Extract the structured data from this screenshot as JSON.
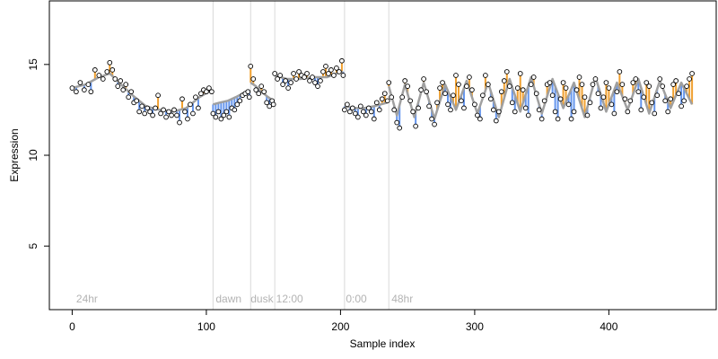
{
  "chart_data": {
    "type": "scatter",
    "title": "",
    "xlabel": "Sample index",
    "ylabel": "Expression",
    "xlim": [
      -17,
      480
    ],
    "ylim": [
      1.5,
      18.5
    ],
    "x_ticks": [
      0,
      100,
      200,
      300,
      400
    ],
    "y_ticks": [
      5,
      10,
      15
    ],
    "grid": false,
    "colors": {
      "points_fill": "#ffffff",
      "points_stroke": "#000000",
      "fit_line": "#a0a0a0",
      "residual_positive": "#f0a030",
      "residual_negative": "#6495ed",
      "divider": "#d9d9d9",
      "annotation_text": "#b3b3b3"
    },
    "annotations": [
      {
        "x": 3,
        "label": "24hr"
      },
      {
        "x": 107,
        "label": "dawn"
      },
      {
        "x": 133,
        "label": "dusk"
      },
      {
        "x": 152,
        "label": "12:00"
      },
      {
        "x": 204,
        "label": "0:00"
      },
      {
        "x": 238,
        "label": "48hr"
      }
    ],
    "dividers": [
      105,
      133,
      151,
      203,
      236
    ],
    "segments": [
      {
        "x_start": 0,
        "x_end": 104,
        "fit": [
          [
            0,
            13.7
          ],
          [
            10,
            13.9
          ],
          [
            20,
            14.3
          ],
          [
            28,
            14.5
          ],
          [
            35,
            14.0
          ],
          [
            45,
            13.3
          ],
          [
            55,
            12.7
          ],
          [
            65,
            12.5
          ],
          [
            75,
            12.4
          ],
          [
            85,
            12.6
          ],
          [
            95,
            13.2
          ],
          [
            104,
            13.6
          ]
        ],
        "points": [
          [
            0,
            13.7
          ],
          [
            3,
            13.5
          ],
          [
            6,
            14.0
          ],
          [
            9,
            13.6
          ],
          [
            12,
            13.9
          ],
          [
            14,
            13.5
          ],
          [
            17,
            14.7
          ],
          [
            20,
            14.4
          ],
          [
            23,
            14.2
          ],
          [
            26,
            14.6
          ],
          [
            28,
            15.1
          ],
          [
            30,
            14.7
          ],
          [
            32,
            14.2
          ],
          [
            34,
            13.8
          ],
          [
            36,
            14.1
          ],
          [
            38,
            13.6
          ],
          [
            40,
            13.9
          ],
          [
            42,
            13.2
          ],
          [
            44,
            13.5
          ],
          [
            46,
            12.9
          ],
          [
            48,
            13.0
          ],
          [
            50,
            12.4
          ],
          [
            52,
            12.7
          ],
          [
            54,
            12.3
          ],
          [
            56,
            12.6
          ],
          [
            58,
            12.4
          ],
          [
            60,
            12.2
          ],
          [
            62,
            12.6
          ],
          [
            64,
            13.3
          ],
          [
            66,
            12.3
          ],
          [
            68,
            12.5
          ],
          [
            70,
            12.1
          ],
          [
            72,
            12.4
          ],
          [
            74,
            12.2
          ],
          [
            76,
            12.5
          ],
          [
            78,
            12.2
          ],
          [
            80,
            11.8
          ],
          [
            82,
            13.1
          ],
          [
            84,
            12.4
          ],
          [
            86,
            12.0
          ],
          [
            88,
            12.8
          ],
          [
            90,
            12.3
          ],
          [
            92,
            13.2
          ],
          [
            94,
            12.6
          ],
          [
            96,
            13.4
          ],
          [
            98,
            13.6
          ],
          [
            100,
            13.5
          ],
          [
            102,
            13.7
          ],
          [
            104,
            13.5
          ]
        ]
      },
      {
        "x_start": 105,
        "x_end": 132,
        "fit": [
          [
            105,
            12.8
          ],
          [
            110,
            12.9
          ],
          [
            116,
            13.0
          ],
          [
            122,
            13.2
          ],
          [
            127,
            13.4
          ],
          [
            132,
            13.6
          ]
        ],
        "points": [
          [
            105,
            12.3
          ],
          [
            107,
            12.1
          ],
          [
            109,
            12.4
          ],
          [
            111,
            12.0
          ],
          [
            113,
            12.2
          ],
          [
            115,
            12.4
          ],
          [
            117,
            12.1
          ],
          [
            119,
            12.6
          ],
          [
            121,
            12.5
          ],
          [
            123,
            12.8
          ],
          [
            125,
            13.0
          ],
          [
            127,
            13.3
          ],
          [
            129,
            13.4
          ],
          [
            131,
            13.5
          ],
          [
            132,
            13.2
          ]
        ]
      },
      {
        "x_start": 133,
        "x_end": 150,
        "fit": [
          [
            133,
            14.0
          ],
          [
            137,
            13.8
          ],
          [
            141,
            13.5
          ],
          [
            146,
            13.2
          ],
          [
            150,
            13.0
          ]
        ],
        "points": [
          [
            133,
            14.9
          ],
          [
            135,
            14.2
          ],
          [
            137,
            13.6
          ],
          [
            139,
            13.4
          ],
          [
            141,
            13.8
          ],
          [
            143,
            13.5
          ],
          [
            145,
            12.9
          ],
          [
            147,
            12.7
          ],
          [
            149,
            13.0
          ],
          [
            150,
            12.8
          ]
        ]
      },
      {
        "x_start": 151,
        "x_end": 202,
        "fit": [
          [
            151,
            14.4
          ],
          [
            160,
            14.2
          ],
          [
            170,
            14.2
          ],
          [
            180,
            14.3
          ],
          [
            190,
            14.3
          ],
          [
            197,
            14.5
          ],
          [
            202,
            14.6
          ]
        ],
        "points": [
          [
            151,
            14.5
          ],
          [
            153,
            14.2
          ],
          [
            155,
            14.4
          ],
          [
            157,
            13.9
          ],
          [
            159,
            14.1
          ],
          [
            161,
            13.7
          ],
          [
            163,
            14.0
          ],
          [
            165,
            14.5
          ],
          [
            167,
            14.2
          ],
          [
            169,
            14.6
          ],
          [
            171,
            14.4
          ],
          [
            173,
            14.3
          ],
          [
            175,
            14.5
          ],
          [
            177,
            14.1
          ],
          [
            179,
            14.3
          ],
          [
            181,
            14.0
          ],
          [
            183,
            13.8
          ],
          [
            185,
            14.1
          ],
          [
            187,
            14.6
          ],
          [
            189,
            14.9
          ],
          [
            191,
            14.5
          ],
          [
            193,
            14.7
          ],
          [
            195,
            14.4
          ],
          [
            197,
            14.8
          ],
          [
            199,
            14.6
          ],
          [
            201,
            15.2
          ],
          [
            202,
            14.4
          ]
        ]
      },
      {
        "x_start": 203,
        "x_end": 235,
        "fit": [
          [
            203,
            12.7
          ],
          [
            210,
            12.6
          ],
          [
            218,
            12.6
          ],
          [
            225,
            12.7
          ],
          [
            230,
            12.8
          ],
          [
            235,
            12.9
          ]
        ],
        "points": [
          [
            203,
            12.5
          ],
          [
            205,
            12.8
          ],
          [
            207,
            12.4
          ],
          [
            209,
            12.6
          ],
          [
            211,
            12.3
          ],
          [
            213,
            12.1
          ],
          [
            215,
            12.7
          ],
          [
            217,
            12.4
          ],
          [
            219,
            12.2
          ],
          [
            221,
            12.6
          ],
          [
            223,
            12.4
          ],
          [
            225,
            12.0
          ],
          [
            227,
            12.9
          ],
          [
            229,
            12.5
          ],
          [
            231,
            13.1
          ],
          [
            233,
            13.4
          ],
          [
            235,
            13.0
          ]
        ]
      },
      {
        "x_start": 236,
        "x_end": 462,
        "fit": [
          [
            236,
            13.8
          ],
          [
            242,
            12.2
          ],
          [
            248,
            13.9
          ],
          [
            255,
            12.1
          ],
          [
            262,
            14.0
          ],
          [
            270,
            12.0
          ],
          [
            278,
            13.9
          ],
          [
            286,
            12.5
          ],
          [
            294,
            14.1
          ],
          [
            302,
            12.3
          ],
          [
            310,
            14.0
          ],
          [
            318,
            12.1
          ],
          [
            326,
            14.2
          ],
          [
            334,
            12.4
          ],
          [
            342,
            14.3
          ],
          [
            350,
            12.3
          ],
          [
            358,
            14.2
          ],
          [
            366,
            12.6
          ],
          [
            374,
            14.0
          ],
          [
            382,
            12.1
          ],
          [
            390,
            14.3
          ],
          [
            398,
            12.4
          ],
          [
            406,
            14.0
          ],
          [
            414,
            12.5
          ],
          [
            422,
            14.2
          ],
          [
            430,
            12.3
          ],
          [
            438,
            14.1
          ],
          [
            446,
            12.6
          ],
          [
            454,
            14.0
          ],
          [
            462,
            12.8
          ]
        ],
        "points": [
          [
            236,
            14.0
          ],
          [
            238,
            13.2
          ],
          [
            240,
            12.5
          ],
          [
            242,
            11.8
          ],
          [
            244,
            11.5
          ],
          [
            246,
            13.2
          ],
          [
            248,
            14.1
          ],
          [
            250,
            13.8
          ],
          [
            252,
            13.0
          ],
          [
            254,
            12.4
          ],
          [
            256,
            11.6
          ],
          [
            258,
            12.6
          ],
          [
            260,
            13.6
          ],
          [
            262,
            14.2
          ],
          [
            264,
            13.5
          ],
          [
            266,
            12.7
          ],
          [
            268,
            12.0
          ],
          [
            270,
            11.7
          ],
          [
            272,
            12.9
          ],
          [
            274,
            13.7
          ],
          [
            276,
            14.0
          ],
          [
            278,
            13.4
          ],
          [
            280,
            12.8
          ],
          [
            282,
            12.5
          ],
          [
            284,
            13.3
          ],
          [
            286,
            14.4
          ],
          [
            288,
            13.9
          ],
          [
            290,
            13.0
          ],
          [
            292,
            12.6
          ],
          [
            294,
            13.8
          ],
          [
            296,
            14.3
          ],
          [
            298,
            13.6
          ],
          [
            300,
            12.8
          ],
          [
            302,
            12.2
          ],
          [
            304,
            12.0
          ],
          [
            306,
            13.3
          ],
          [
            308,
            14.4
          ],
          [
            310,
            13.9
          ],
          [
            312,
            13.1
          ],
          [
            314,
            12.5
          ],
          [
            316,
            11.9
          ],
          [
            318,
            12.4
          ],
          [
            320,
            13.5
          ],
          [
            322,
            14.1
          ],
          [
            324,
            14.6
          ],
          [
            326,
            13.8
          ],
          [
            328,
            12.9
          ],
          [
            330,
            12.4
          ],
          [
            332,
            13.7
          ],
          [
            334,
            14.5
          ],
          [
            336,
            13.6
          ],
          [
            338,
            12.6
          ],
          [
            340,
            12.2
          ],
          [
            342,
            13.9
          ],
          [
            344,
            14.3
          ],
          [
            346,
            13.4
          ],
          [
            348,
            12.5
          ],
          [
            350,
            12.0
          ],
          [
            352,
            13.0
          ],
          [
            354,
            13.9
          ],
          [
            356,
            14.0
          ],
          [
            358,
            13.3
          ],
          [
            360,
            12.4
          ],
          [
            362,
            12.0
          ],
          [
            364,
            13.1
          ],
          [
            366,
            14.0
          ],
          [
            368,
            13.7
          ],
          [
            370,
            12.8
          ],
          [
            372,
            12.0
          ],
          [
            374,
            12.4
          ],
          [
            376,
            13.6
          ],
          [
            378,
            14.3
          ],
          [
            380,
            13.9
          ],
          [
            382,
            13.2
          ],
          [
            384,
            12.2
          ],
          [
            386,
            12.9
          ],
          [
            388,
            13.9
          ],
          [
            390,
            14.2
          ],
          [
            392,
            13.4
          ],
          [
            394,
            12.6
          ],
          [
            396,
            13.2
          ],
          [
            398,
            14.0
          ],
          [
            400,
            13.7
          ],
          [
            402,
            12.8
          ],
          [
            404,
            12.3
          ],
          [
            406,
            13.5
          ],
          [
            408,
            14.6
          ],
          [
            410,
            13.9
          ],
          [
            412,
            13.1
          ],
          [
            414,
            12.4
          ],
          [
            416,
            13.0
          ],
          [
            418,
            14.0
          ],
          [
            420,
            14.2
          ],
          [
            422,
            13.5
          ],
          [
            424,
            12.5
          ],
          [
            426,
            13.2
          ],
          [
            428,
            14.0
          ],
          [
            430,
            13.8
          ],
          [
            432,
            12.9
          ],
          [
            434,
            12.3
          ],
          [
            436,
            13.3
          ],
          [
            438,
            14.2
          ],
          [
            440,
            13.8
          ],
          [
            442,
            13.0
          ],
          [
            444,
            12.4
          ],
          [
            446,
            13.1
          ],
          [
            448,
            13.9
          ],
          [
            450,
            14.1
          ],
          [
            452,
            13.4
          ],
          [
            454,
            12.7
          ],
          [
            456,
            13.0
          ],
          [
            458,
            13.8
          ],
          [
            460,
            14.2
          ],
          [
            462,
            14.5
          ]
        ]
      }
    ]
  }
}
